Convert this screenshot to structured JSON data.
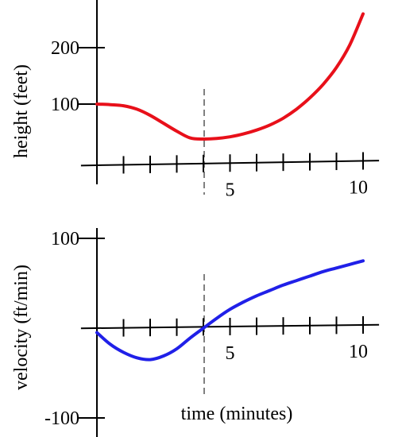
{
  "chart_data": [
    {
      "type": "line",
      "ylabel": "height  (feet)",
      "xlabel": "",
      "xlim": [
        0,
        10.5
      ],
      "ylim": [
        -35,
        270
      ],
      "x_ticks": [
        0,
        1,
        2,
        3,
        4,
        5,
        6,
        7,
        8,
        9,
        10
      ],
      "x_tick_labels": [
        {
          "value": 5,
          "label": "5"
        },
        {
          "value": 10,
          "label": "10"
        }
      ],
      "y_ticks": [
        100,
        200
      ],
      "y_tick_labels": [
        {
          "value": 200,
          "label": "200"
        },
        {
          "value": 100,
          "label": "100"
        }
      ],
      "grid": false,
      "vertical_reference_x": 4,
      "series": [
        {
          "color": "#e8101a",
          "x": [
            0,
            0.5,
            1,
            1.5,
            2,
            2.5,
            3,
            3.5,
            4,
            4.5,
            5,
            5.5,
            6,
            6.5,
            7,
            7.5,
            8,
            8.5,
            9,
            9.5,
            10
          ],
          "y": [
            100,
            99,
            97,
            91,
            80,
            66,
            52,
            40,
            38,
            39,
            42,
            47,
            54,
            63,
            75,
            91,
            111,
            135,
            165,
            205,
            260
          ]
        }
      ]
    },
    {
      "type": "line",
      "ylabel": "velocity  (ft/min)",
      "xlabel": "time  (minutes)",
      "xlim": [
        0,
        10.5
      ],
      "ylim": [
        -100,
        100
      ],
      "x_ticks": [
        0,
        1,
        2,
        3,
        4,
        5,
        6,
        7,
        8,
        9,
        10
      ],
      "x_tick_labels": [
        {
          "value": 5,
          "label": "5"
        },
        {
          "value": 10,
          "label": "10"
        }
      ],
      "y_ticks": [
        -100,
        100
      ],
      "y_tick_labels": [
        {
          "value": 100,
          "label": "100"
        },
        {
          "value": -100,
          "label": "-100"
        }
      ],
      "grid": false,
      "vertical_reference_x": 4,
      "series": [
        {
          "color": "#2020e8",
          "x": [
            0,
            0.5,
            1,
            1.5,
            2,
            2.5,
            3,
            3.5,
            4,
            4.5,
            5,
            5.5,
            6,
            6.5,
            7,
            7.5,
            8,
            8.5,
            9,
            9.5,
            10
          ],
          "y": [
            -5,
            -18,
            -27,
            -33,
            -35,
            -31,
            -23,
            -11,
            0,
            11,
            21,
            29,
            36,
            42,
            48,
            53,
            58,
            63,
            67,
            71,
            75
          ]
        }
      ]
    }
  ]
}
